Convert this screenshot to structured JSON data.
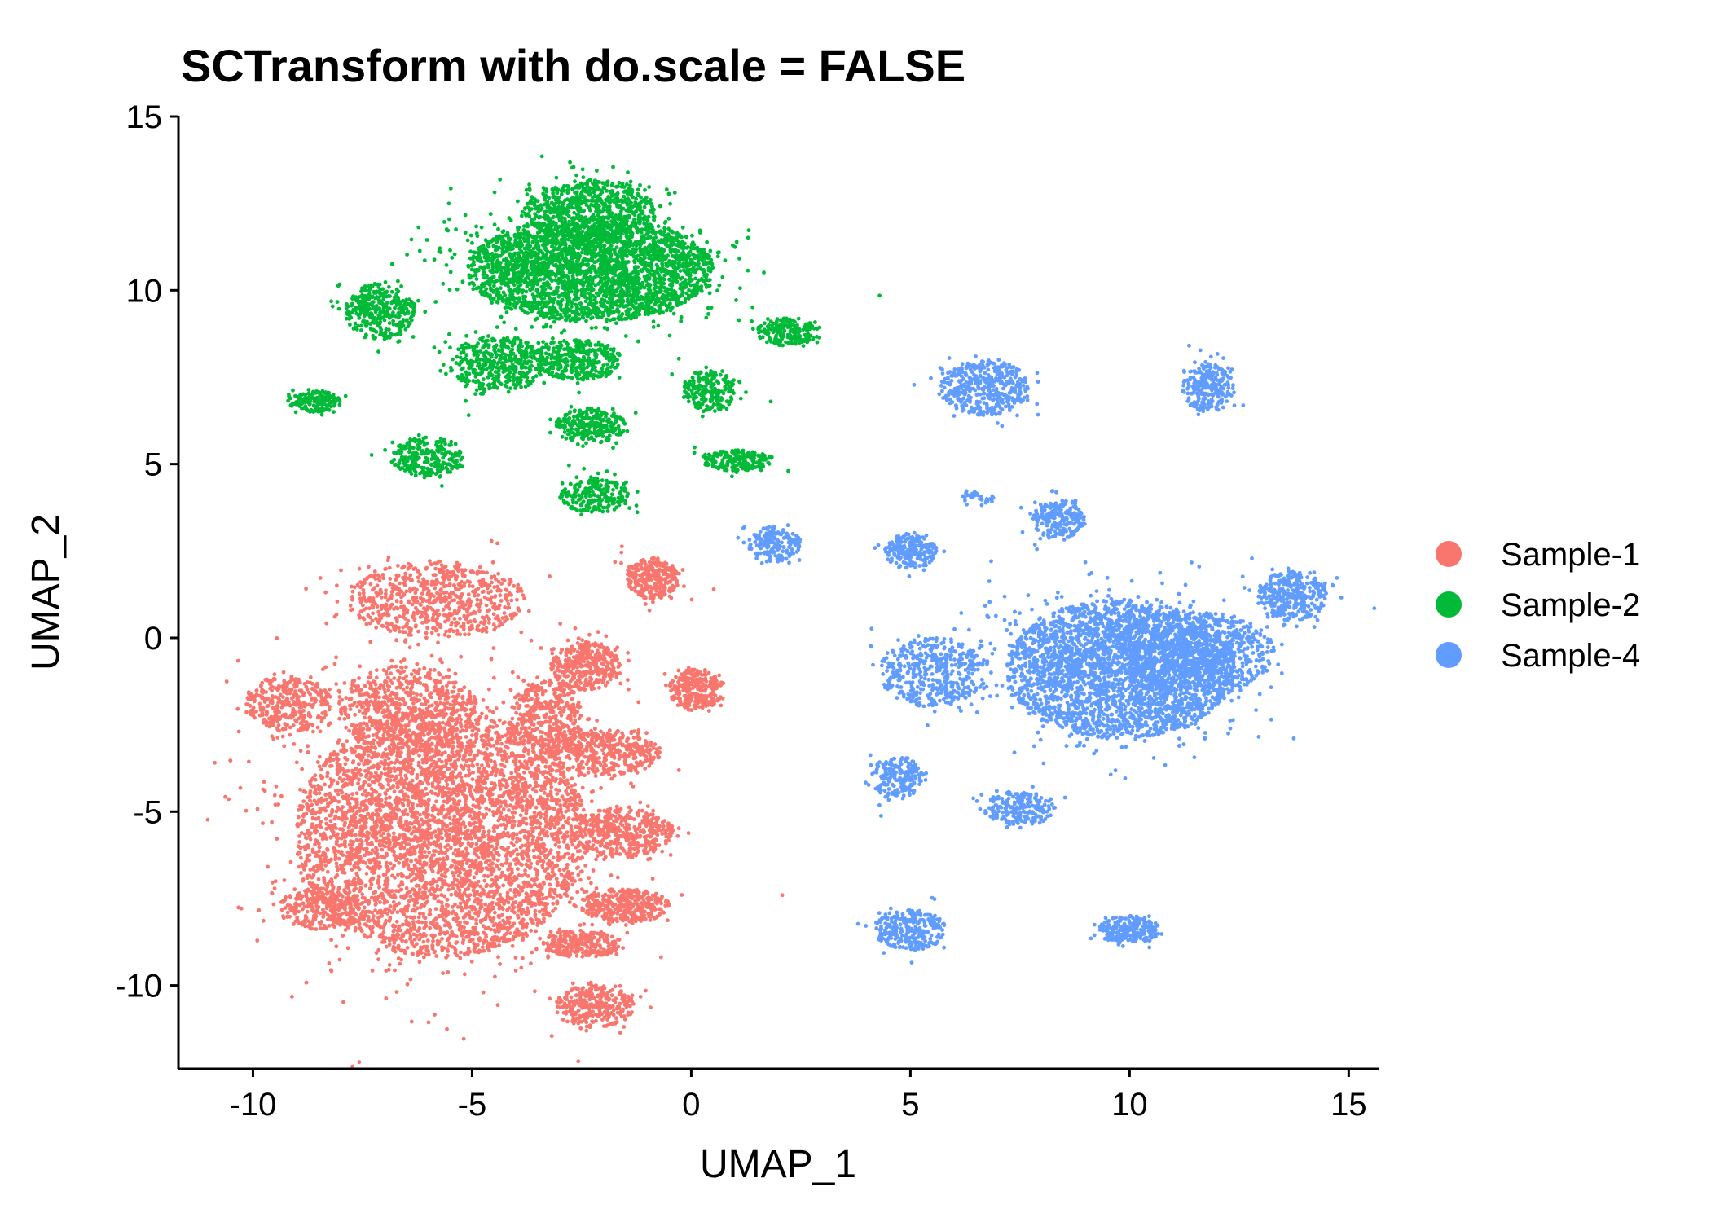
{
  "chart_data": {
    "type": "scatter",
    "title": "SCTransform with do.scale = FALSE",
    "xlabel": "UMAP_1",
    "ylabel": "UMAP_2",
    "xlim": [
      -11.7,
      15.7
    ],
    "ylim": [
      -12.4,
      15.0
    ],
    "xticks": [
      "-10",
      "-5",
      "0",
      "5",
      "10",
      "15"
    ],
    "yticks": [
      "15",
      "10",
      "5",
      "0",
      "-5",
      "-10"
    ],
    "xtick_values": [
      -10,
      -5,
      0,
      5,
      10,
      15
    ],
    "ytick_values": [
      15,
      10,
      5,
      0,
      -5,
      -10
    ],
    "grid": false,
    "legend_position": "right",
    "series": [
      {
        "name": "Sample-1",
        "color": "#F8766D",
        "clusters": [
          {
            "cx": -5.7,
            "cy": -5.6,
            "rx": 3.3,
            "ry": 3.6,
            "n": 5200
          },
          {
            "cx": -6.5,
            "cy": -2.0,
            "rx": 1.6,
            "ry": 1.2,
            "n": 600
          },
          {
            "cx": -5.8,
            "cy": 1.1,
            "rx": 2.0,
            "ry": 1.1,
            "n": 700
          },
          {
            "cx": -9.2,
            "cy": -1.9,
            "rx": 1.0,
            "ry": 0.8,
            "n": 350
          },
          {
            "cx": -8.4,
            "cy": -7.8,
            "rx": 1.0,
            "ry": 0.6,
            "n": 300
          },
          {
            "cx": -3.3,
            "cy": -2.2,
            "rx": 0.8,
            "ry": 1.0,
            "n": 350
          },
          {
            "cx": -2.4,
            "cy": -0.8,
            "rx": 0.8,
            "ry": 0.7,
            "n": 350
          },
          {
            "cx": -2.0,
            "cy": -3.3,
            "rx": 1.3,
            "ry": 0.7,
            "n": 450
          },
          {
            "cx": -1.6,
            "cy": -5.6,
            "rx": 1.2,
            "ry": 0.7,
            "n": 450
          },
          {
            "cx": -1.5,
            "cy": -7.7,
            "rx": 1.0,
            "ry": 0.5,
            "n": 350
          },
          {
            "cx": -2.5,
            "cy": -8.8,
            "rx": 0.9,
            "ry": 0.4,
            "n": 250
          },
          {
            "cx": -2.2,
            "cy": -10.6,
            "rx": 0.9,
            "ry": 0.6,
            "n": 300
          },
          {
            "cx": -0.9,
            "cy": 1.7,
            "rx": 0.6,
            "ry": 0.6,
            "n": 300
          },
          {
            "cx": 0.1,
            "cy": -1.5,
            "rx": 0.6,
            "ry": 0.6,
            "n": 280
          }
        ]
      },
      {
        "name": "Sample-2",
        "color": "#00BA38",
        "clusters": [
          {
            "cx": -2.3,
            "cy": 10.6,
            "rx": 2.8,
            "ry": 1.5,
            "n": 3200
          },
          {
            "cx": -2.3,
            "cy": 12.3,
            "rx": 1.5,
            "ry": 0.9,
            "n": 700
          },
          {
            "cx": -7.1,
            "cy": 9.4,
            "rx": 0.8,
            "ry": 0.8,
            "n": 350
          },
          {
            "cx": -4.4,
            "cy": 7.9,
            "rx": 1.1,
            "ry": 0.8,
            "n": 450
          },
          {
            "cx": -2.6,
            "cy": 8.0,
            "rx": 1.0,
            "ry": 0.6,
            "n": 350
          },
          {
            "cx": -2.3,
            "cy": 6.1,
            "rx": 0.8,
            "ry": 0.5,
            "n": 250
          },
          {
            "cx": 0.4,
            "cy": 7.1,
            "rx": 0.6,
            "ry": 0.6,
            "n": 220
          },
          {
            "cx": 1.0,
            "cy": 5.1,
            "rx": 0.8,
            "ry": 0.3,
            "n": 200
          },
          {
            "cx": 2.2,
            "cy": 8.8,
            "rx": 0.7,
            "ry": 0.4,
            "n": 200
          },
          {
            "cx": -6.0,
            "cy": 5.2,
            "rx": 0.8,
            "ry": 0.6,
            "n": 250
          },
          {
            "cx": -8.6,
            "cy": 6.8,
            "rx": 0.6,
            "ry": 0.3,
            "n": 160
          },
          {
            "cx": -2.2,
            "cy": 4.1,
            "rx": 0.8,
            "ry": 0.5,
            "n": 220
          }
        ]
      },
      {
        "name": "Sample-4",
        "color": "#619CFF",
        "clusters": [
          {
            "cx": 9.8,
            "cy": -0.9,
            "rx": 2.6,
            "ry": 2.0,
            "n": 3800
          },
          {
            "cx": 11.5,
            "cy": -0.4,
            "rx": 1.8,
            "ry": 1.2,
            "n": 800
          },
          {
            "cx": 13.7,
            "cy": 1.2,
            "rx": 0.8,
            "ry": 0.7,
            "n": 350
          },
          {
            "cx": 5.5,
            "cy": -1.0,
            "rx": 1.2,
            "ry": 1.0,
            "n": 450
          },
          {
            "cx": 6.7,
            "cy": 7.2,
            "rx": 1.0,
            "ry": 0.8,
            "n": 450
          },
          {
            "cx": 11.8,
            "cy": 7.2,
            "rx": 0.6,
            "ry": 0.7,
            "n": 250
          },
          {
            "cx": 8.4,
            "cy": 3.4,
            "rx": 0.6,
            "ry": 0.6,
            "n": 220
          },
          {
            "cx": 5.0,
            "cy": 2.5,
            "rx": 0.6,
            "ry": 0.5,
            "n": 220
          },
          {
            "cx": 1.9,
            "cy": 2.7,
            "rx": 0.6,
            "ry": 0.5,
            "n": 180
          },
          {
            "cx": 4.7,
            "cy": -4.0,
            "rx": 0.6,
            "ry": 0.6,
            "n": 200
          },
          {
            "cx": 7.5,
            "cy": -4.9,
            "rx": 0.8,
            "ry": 0.5,
            "n": 220
          },
          {
            "cx": 5.0,
            "cy": -8.4,
            "rx": 0.8,
            "ry": 0.6,
            "n": 280
          },
          {
            "cx": 10.0,
            "cy": -8.4,
            "rx": 0.7,
            "ry": 0.4,
            "n": 220
          },
          {
            "cx": 6.5,
            "cy": 4.0,
            "rx": 0.4,
            "ry": 0.2,
            "n": 30
          }
        ]
      }
    ]
  }
}
